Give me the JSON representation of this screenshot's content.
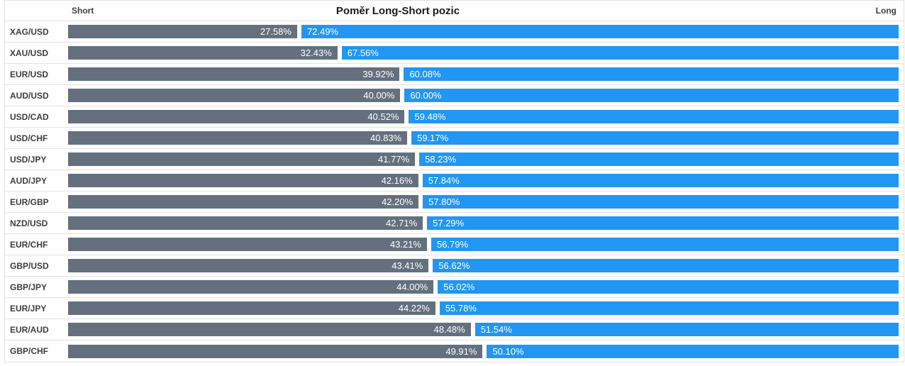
{
  "header": {
    "title": "Poměr Long-Short pozic",
    "short_label": "Short",
    "long_label": "Long"
  },
  "chart_data": {
    "type": "bar",
    "orientation": "horizontal",
    "stacked": true,
    "title": "Poměr Long-Short pozic",
    "legend": [
      "Short",
      "Long"
    ],
    "x_range_pct": [
      0,
      100
    ],
    "colors": {
      "short": "#64707e",
      "long": "#2196f3",
      "grid_border": "#e3e3e3",
      "label_text": "#3d3d3d",
      "bar_text": "#ffffff"
    },
    "rows": [
      {
        "pair": "XAG/USD",
        "short_pct": 27.58,
        "long_pct": 72.49,
        "short_label": "27.58%",
        "long_label": "72.49%"
      },
      {
        "pair": "XAU/USD",
        "short_pct": 32.43,
        "long_pct": 67.56,
        "short_label": "32.43%",
        "long_label": "67.56%"
      },
      {
        "pair": "EUR/USD",
        "short_pct": 39.92,
        "long_pct": 60.08,
        "short_label": "39.92%",
        "long_label": "60.08%"
      },
      {
        "pair": "AUD/USD",
        "short_pct": 40.0,
        "long_pct": 60.0,
        "short_label": "40.00%",
        "long_label": "60.00%"
      },
      {
        "pair": "USD/CAD",
        "short_pct": 40.52,
        "long_pct": 59.48,
        "short_label": "40.52%",
        "long_label": "59.48%"
      },
      {
        "pair": "USD/CHF",
        "short_pct": 40.83,
        "long_pct": 59.17,
        "short_label": "40.83%",
        "long_label": "59.17%"
      },
      {
        "pair": "USD/JPY",
        "short_pct": 41.77,
        "long_pct": 58.23,
        "short_label": "41.77%",
        "long_label": "58.23%"
      },
      {
        "pair": "AUD/JPY",
        "short_pct": 42.16,
        "long_pct": 57.84,
        "short_label": "42.16%",
        "long_label": "57.84%"
      },
      {
        "pair": "EUR/GBP",
        "short_pct": 42.2,
        "long_pct": 57.8,
        "short_label": "42.20%",
        "long_label": "57.80%"
      },
      {
        "pair": "NZD/USD",
        "short_pct": 42.71,
        "long_pct": 57.29,
        "short_label": "42.71%",
        "long_label": "57.29%"
      },
      {
        "pair": "EUR/CHF",
        "short_pct": 43.21,
        "long_pct": 56.79,
        "short_label": "43.21%",
        "long_label": "56.79%"
      },
      {
        "pair": "GBP/USD",
        "short_pct": 43.41,
        "long_pct": 56.62,
        "short_label": "43.41%",
        "long_label": "56.62%"
      },
      {
        "pair": "GBP/JPY",
        "short_pct": 44.0,
        "long_pct": 56.02,
        "short_label": "44.00%",
        "long_label": "56.02%"
      },
      {
        "pair": "EUR/JPY",
        "short_pct": 44.22,
        "long_pct": 55.78,
        "short_label": "44.22%",
        "long_label": "55.78%"
      },
      {
        "pair": "EUR/AUD",
        "short_pct": 48.48,
        "long_pct": 51.54,
        "short_label": "48.48%",
        "long_label": "51.54%"
      },
      {
        "pair": "GBP/CHF",
        "short_pct": 49.91,
        "long_pct": 50.1,
        "short_label": "49.91%",
        "long_label": "50.10%"
      }
    ]
  }
}
